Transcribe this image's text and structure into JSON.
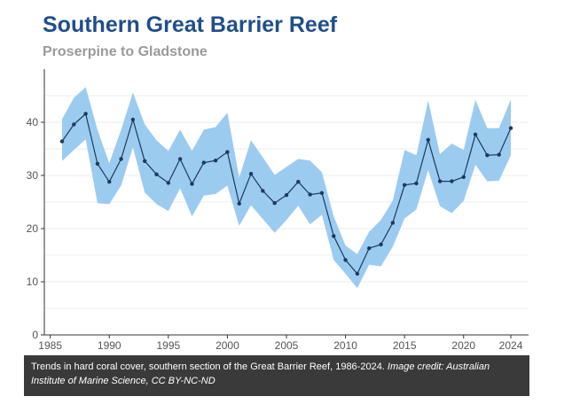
{
  "header": {
    "title": "Southern Great Barrier Reef",
    "subtitle": "Proserpine to Gladstone"
  },
  "caption": {
    "text": "Trends in hard coral cover, southern section of the Great Barrier Reef, 1986-2024. ",
    "credit": "Image credit: Australian Institute of Marine Science, CC BY-NC-ND"
  },
  "colors": {
    "title": "#1f4e8c",
    "band": "#9ccbf0",
    "line": "#1b3a5c",
    "caption_bg": "#3a3a3a"
  },
  "chart_data": {
    "type": "line",
    "title": "Southern Great Barrier Reef",
    "subtitle": "Proserpine to Gladstone",
    "xlabel": "",
    "ylabel": "",
    "xlim": [
      1984.5,
      2025.5
    ],
    "ylim": [
      0,
      50
    ],
    "x_ticks": [
      1985,
      1990,
      1995,
      2000,
      2005,
      2010,
      2015,
      2020,
      2024
    ],
    "y_ticks": [
      0,
      10,
      20,
      30,
      40
    ],
    "grid": "horizontal",
    "series": [
      {
        "x": [
          1986,
          1987,
          1988,
          1989,
          1990,
          1991,
          1992,
          1993,
          1994,
          1995,
          1996,
          1997,
          1998,
          1999,
          2000,
          2001,
          2002,
          2003,
          2004,
          2005,
          2006,
          2007,
          2008,
          2009,
          2010,
          2011,
          2012,
          2013,
          2014,
          2015,
          2016,
          2017,
          2018,
          2019,
          2020,
          2021,
          2022,
          2023,
          2024
        ],
        "values": [
          36.4,
          39.6,
          41.6,
          32.2,
          28.8,
          33.1,
          40.5,
          32.7,
          30.2,
          28.6,
          33.1,
          28.4,
          32.4,
          32.8,
          34.4,
          24.7,
          30.3,
          27.1,
          24.8,
          26.3,
          28.8,
          26.4,
          26.7,
          18.6,
          14.1,
          11.5,
          16.3,
          17.0,
          21.1,
          28.2,
          28.5,
          36.7,
          28.9,
          28.9,
          29.7,
          37.7,
          33.8,
          33.9,
          38.9
        ],
        "upper": [
          40.6,
          44.6,
          46.6,
          38.6,
          32.3,
          38.6,
          45.6,
          39.6,
          36.6,
          34.6,
          38.6,
          34.6,
          38.6,
          39.1,
          41.8,
          29.6,
          36.6,
          33.4,
          30.1,
          31.6,
          33.1,
          32.8,
          30.6,
          22.3,
          16.8,
          15.2,
          19.4,
          21.6,
          25.3,
          34.8,
          33.8,
          44.1,
          34.0,
          36.0,
          34.8,
          44.2,
          38.9,
          38.9,
          44.3
        ],
        "lower": [
          32.7,
          34.8,
          36.8,
          24.8,
          24.6,
          28.1,
          35.3,
          26.8,
          24.6,
          23.3,
          27.6,
          22.3,
          26.2,
          26.5,
          28.1,
          20.5,
          24.4,
          21.8,
          19.2,
          21.6,
          24.3,
          20.8,
          22.6,
          14.1,
          11.5,
          8.8,
          13.2,
          12.9,
          16.6,
          21.9,
          23.6,
          31.0,
          24.2,
          22.9,
          25.2,
          32.0,
          28.9,
          29.0,
          33.8
        ]
      }
    ]
  }
}
